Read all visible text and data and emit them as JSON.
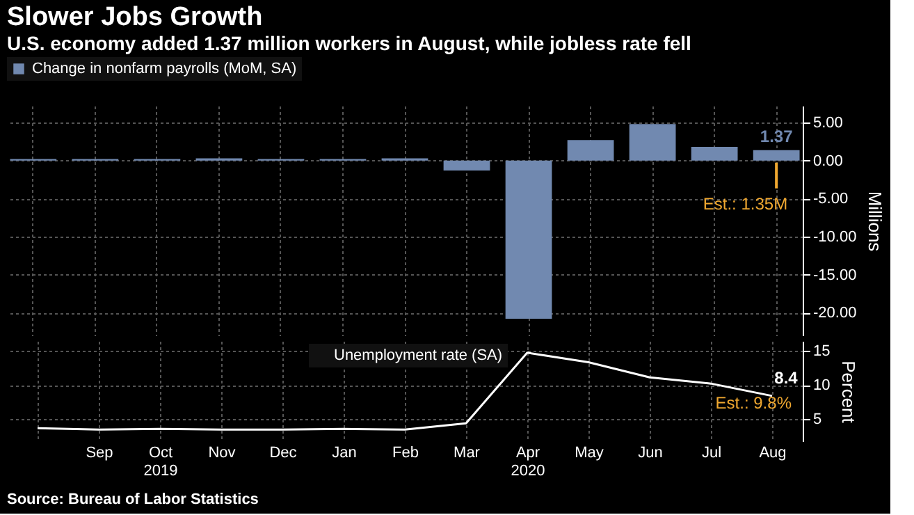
{
  "chart_data": [
    {
      "type": "bar",
      "title": "Slower Jobs Growth",
      "subtitle": "U.S. economy added 1.37 million workers in August, while jobless rate fell",
      "categories": [
        null,
        "Sep",
        "Oct\n2019",
        "Nov",
        "Dec",
        "Jan",
        "Feb",
        "Mar",
        "Apr\n2020",
        "May",
        "Jun",
        "Jul",
        "Aug"
      ],
      "series": [
        {
          "name": "Change in nonfarm payrolls (MoM, SA)",
          "color": "#7189b0",
          "values": [
            0.2,
            0.2,
            0.2,
            0.3,
            0.2,
            0.2,
            0.3,
            -1.3,
            -20.8,
            2.7,
            4.8,
            1.8,
            1.37
          ],
          "value_labels": [
            null,
            null,
            null,
            null,
            null,
            null,
            null,
            null,
            null,
            null,
            null,
            null,
            "1.37"
          ]
        }
      ],
      "ylim": [
        -23,
        7.2
      ],
      "yticks": [
        {
          "value": 5,
          "label": "5.00"
        },
        {
          "value": 0,
          "label": "0.00"
        },
        {
          "value": -5,
          "label": "-5.00"
        },
        {
          "value": -10,
          "label": "-10.00"
        },
        {
          "value": -15,
          "label": "-15.00"
        },
        {
          "value": -20,
          "label": "-20.00"
        }
      ],
      "ylabel": "Millions",
      "legend": "top left",
      "grid": true,
      "tick_labels": "y",
      "annotations": [
        {
          "text": "Est.: 1.35M",
          "x": "Aug",
          "y": 0
        }
      ]
    },
    {
      "type": "line",
      "categories": [
        null,
        "Sep",
        "Oct\n2019",
        "Nov",
        "Dec",
        "Jan",
        "Feb",
        "Mar",
        "Apr\n2020",
        "May",
        "Jun",
        "Jul",
        "Aug"
      ],
      "series": [
        {
          "name": "Unemployment rate (SA)",
          "color": "#ffffff",
          "values": [
            3.7,
            3.5,
            3.6,
            3.5,
            3.5,
            3.6,
            3.5,
            4.4,
            14.7,
            13.3,
            11.1,
            10.2,
            8.4
          ],
          "value_labels": [
            null,
            null,
            null,
            null,
            null,
            null,
            null,
            null,
            null,
            null,
            null,
            null,
            "8.4"
          ]
        }
      ],
      "ylim": [
        1.8,
        16.4
      ],
      "yticks": [
        5,
        10,
        15
      ],
      "ylabel": "Percent",
      "legend": "top",
      "grid": true,
      "annotations": [
        "Est.: 9.8%",
        "Source: Bureau of Labor Statistics"
      ]
    }
  ]
}
